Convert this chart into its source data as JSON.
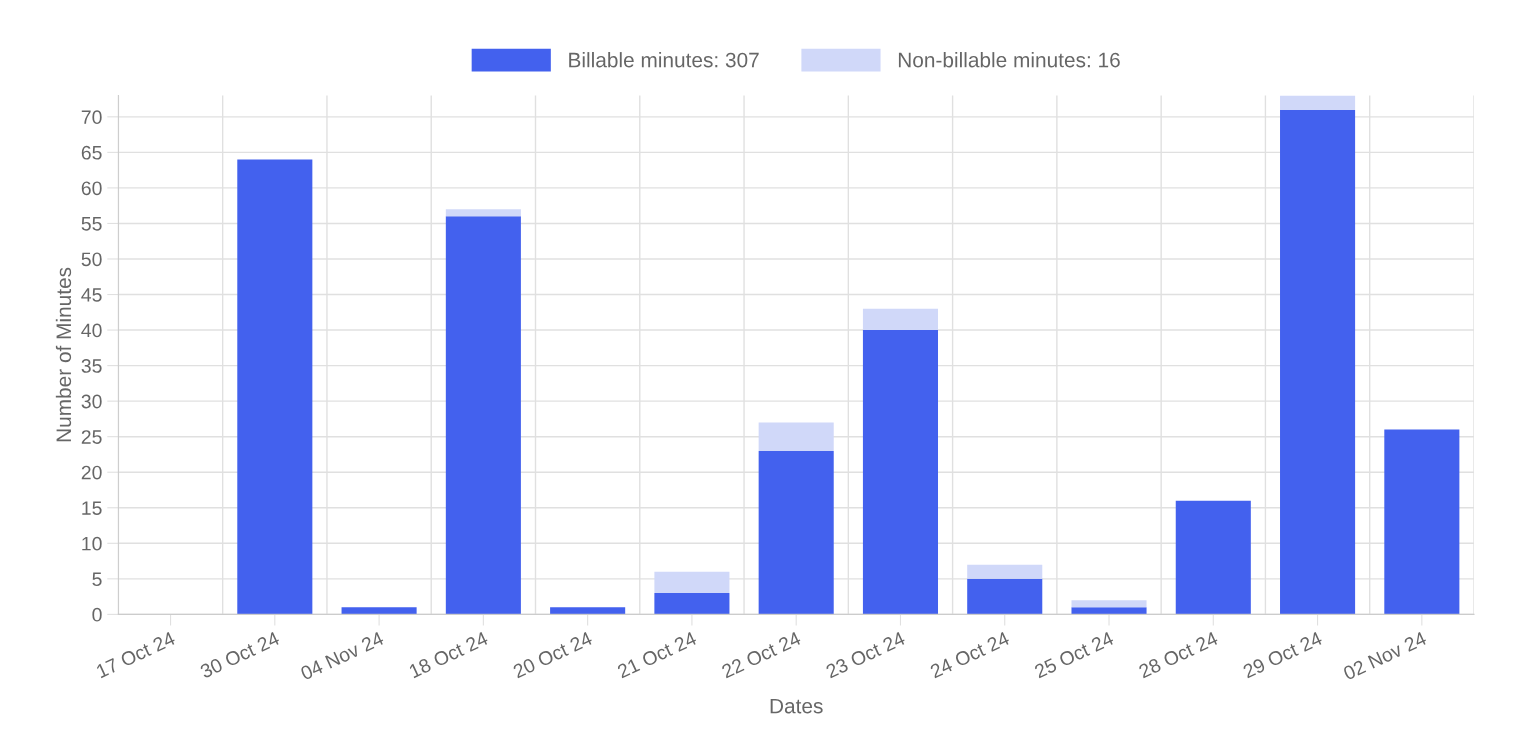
{
  "chart_data": {
    "type": "bar",
    "stacked": true,
    "xlabel": "Dates",
    "ylabel": "Number of Minutes",
    "categories": [
      "17 Oct 24",
      "30 Oct 24",
      "04 Nov 24",
      "18 Oct 24",
      "20 Oct 24",
      "21 Oct 24",
      "22 Oct 24",
      "23 Oct 24",
      "24 Oct 24",
      "25 Oct 24",
      "28 Oct 24",
      "29 Oct 24",
      "02 Nov 24"
    ],
    "series": [
      {
        "name": "Billable minutes: 307",
        "color": "#4361ee",
        "values": [
          0,
          64,
          1,
          56,
          1,
          3,
          23,
          40,
          5,
          1,
          16,
          71,
          26
        ]
      },
      {
        "name": "Non-billable minutes: 16",
        "color": "#d0d8f9",
        "values": [
          0,
          0,
          0,
          1,
          0,
          3,
          4,
          3,
          2,
          1,
          0,
          2,
          0
        ]
      }
    ],
    "ylim": [
      0,
      73
    ],
    "yticks": [
      0,
      5,
      10,
      15,
      20,
      25,
      30,
      35,
      40,
      45,
      50,
      55,
      60,
      65,
      70
    ],
    "grid": true,
    "legend": "top"
  }
}
